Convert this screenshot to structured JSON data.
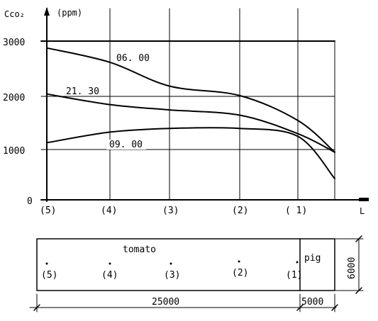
{
  "chart_data": {
    "type": "line",
    "ylabel": "Cco₂",
    "yunit": "(ppm)",
    "xaxis_end_label": "L",
    "yticks": [
      "3000",
      "2000",
      "1000",
      "0"
    ],
    "ylim": [
      0,
      3000
    ],
    "x_positions": [
      "(5)",
      "(4)",
      "(3)",
      "(2)",
      "( 1)"
    ],
    "series": [
      {
        "name": "06. 00",
        "values": [
          {
            "x": 0,
            "y": 2870
          },
          {
            "x": 1,
            "y": 2600
          },
          {
            "x": 2,
            "y": 2150
          },
          {
            "x": 3,
            "y": 1970
          },
          {
            "x": 4,
            "y": 1500
          },
          {
            "x": 4.6,
            "y": 900
          }
        ]
      },
      {
        "name": "21. 30",
        "values": [
          {
            "x": 0,
            "y": 2000
          },
          {
            "x": 1,
            "y": 1800
          },
          {
            "x": 2,
            "y": 1700
          },
          {
            "x": 3,
            "y": 1600
          },
          {
            "x": 4,
            "y": 1250
          },
          {
            "x": 4.6,
            "y": 900
          }
        ]
      },
      {
        "name": "09. 00",
        "values": [
          {
            "x": 0,
            "y": 1080
          },
          {
            "x": 1,
            "y": 1280
          },
          {
            "x": 2,
            "y": 1350
          },
          {
            "x": 3,
            "y": 1350
          },
          {
            "x": 4,
            "y": 1200
          },
          {
            "x": 4.6,
            "y": 400
          }
        ]
      }
    ],
    "grid": true
  },
  "plan": {
    "zone_label": "tomato",
    "pig_label": "pig",
    "point_labels": [
      "(5)",
      "(4)",
      "(3)",
      "(2)",
      "(1)"
    ],
    "height_dim": "6000",
    "dim_tomato": "25000",
    "dim_pig": "5000"
  }
}
